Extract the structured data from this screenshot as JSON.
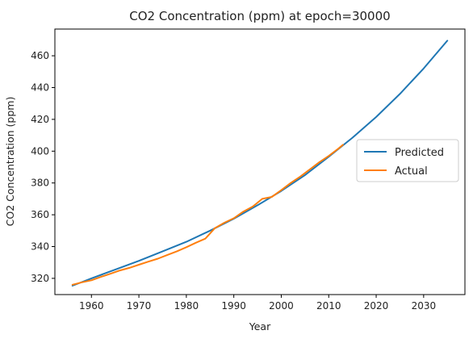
{
  "chart_data": {
    "type": "line",
    "title": "CO2 Concentration (ppm) at epoch=30000",
    "xlabel": "Year",
    "ylabel": "CO2 Concentration (ppm)",
    "xlim": [
      1952.3,
      2038.7
    ],
    "ylim": [
      309.8,
      476.8
    ],
    "x_ticks": [
      1960,
      1970,
      1980,
      1990,
      2000,
      2010,
      2020,
      2030
    ],
    "y_ticks": [
      320,
      340,
      360,
      380,
      400,
      420,
      440,
      460
    ],
    "grid": false,
    "legend_position": "center-right",
    "series": [
      {
        "name": "Predicted",
        "color": "#1f77b4",
        "x": [
          1956,
          1960,
          1965,
          1970,
          1975,
          1980,
          1985,
          1990,
          1995,
          2000,
          2005,
          2010,
          2015,
          2020,
          2025,
          2030,
          2035
        ],
        "y": [
          315.4,
          320.0,
          325.5,
          331.0,
          337.0,
          343.0,
          350.0,
          357.5,
          366.0,
          375.0,
          385.0,
          396.5,
          408.5,
          421.5,
          436.0,
          452.0,
          469.5
        ]
      },
      {
        "name": "Actual",
        "color": "#ff7f0e",
        "x": [
          1956,
          1958,
          1960,
          1962,
          1964,
          1966,
          1968,
          1970,
          1972,
          1974,
          1976,
          1978,
          1980,
          1982,
          1984,
          1986,
          1988,
          1990,
          1992,
          1994,
          1996,
          1998,
          2000,
          2002,
          2004,
          2006,
          2008,
          2010,
          2012,
          2013
        ],
        "y": [
          316.0,
          317.5,
          318.8,
          320.9,
          322.9,
          325.0,
          326.6,
          328.6,
          330.5,
          332.4,
          334.7,
          337.0,
          339.6,
          342.4,
          345.0,
          351.5,
          355.0,
          357.8,
          362.0,
          365.2,
          370.0,
          371.2,
          375.5,
          380.0,
          384.0,
          388.5,
          393.0,
          397.0,
          401.5,
          404.0
        ]
      }
    ]
  }
}
